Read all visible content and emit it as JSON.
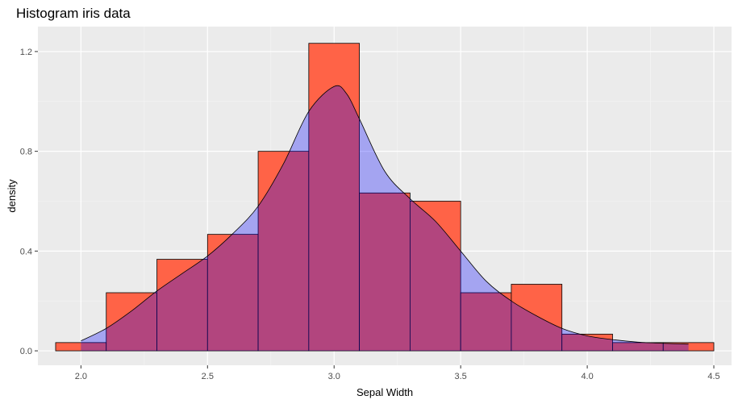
{
  "chart_data": {
    "type": "bar",
    "title": "Histogram iris data",
    "xlabel": "Sepal Width",
    "ylabel": "density",
    "xlim": [
      1.83,
      4.57
    ],
    "ylim": [
      -0.058,
      1.3
    ],
    "x_ticks": [
      2.0,
      2.5,
      3.0,
      3.5,
      4.0,
      4.5
    ],
    "x_tick_labels": [
      "2.0",
      "2.5",
      "3.0",
      "3.5",
      "4.0",
      "4.5"
    ],
    "y_ticks": [
      0.0,
      0.4,
      0.8,
      1.2
    ],
    "y_tick_labels": [
      "0.0",
      "0.4",
      "0.8",
      "1.2"
    ],
    "grid": true,
    "legend": "none",
    "series": [
      {
        "type": "histogram",
        "bins": [
          {
            "x0": 1.9,
            "x1": 2.1,
            "density": 0.033
          },
          {
            "x0": 2.1,
            "x1": 2.3,
            "density": 0.233
          },
          {
            "x0": 2.3,
            "x1": 2.5,
            "density": 0.367
          },
          {
            "x0": 2.5,
            "x1": 2.7,
            "density": 0.467
          },
          {
            "x0": 2.7,
            "x1": 2.9,
            "density": 0.8
          },
          {
            "x0": 2.9,
            "x1": 3.1,
            "density": 1.233
          },
          {
            "x0": 3.1,
            "x1": 3.3,
            "density": 0.633
          },
          {
            "x0": 3.3,
            "x1": 3.5,
            "density": 0.6
          },
          {
            "x0": 3.5,
            "x1": 3.7,
            "density": 0.233
          },
          {
            "x0": 3.7,
            "x1": 3.9,
            "density": 0.267
          },
          {
            "x0": 3.9,
            "x1": 4.1,
            "density": 0.067
          },
          {
            "x0": 4.1,
            "x1": 4.3,
            "density": 0.033
          },
          {
            "x0": 4.3,
            "x1": 4.5,
            "density": 0.033
          }
        ],
        "color": "#FF6347",
        "edge_color": "#000000"
      },
      {
        "type": "density",
        "x": [
          2.0,
          2.1,
          2.2,
          2.3,
          2.4,
          2.5,
          2.6,
          2.7,
          2.8,
          2.9,
          3.0,
          3.05,
          3.1,
          3.2,
          3.3,
          3.4,
          3.5,
          3.6,
          3.7,
          3.8,
          3.9,
          4.0,
          4.1,
          4.2,
          4.3,
          4.4
        ],
        "y": [
          0.04,
          0.09,
          0.16,
          0.24,
          0.31,
          0.38,
          0.47,
          0.58,
          0.75,
          0.96,
          1.06,
          1.03,
          0.93,
          0.72,
          0.61,
          0.52,
          0.4,
          0.28,
          0.2,
          0.14,
          0.09,
          0.06,
          0.045,
          0.035,
          0.03,
          0.027
        ],
        "color": "#0000FF",
        "fill_opacity": 0.3,
        "line_color": "#000000"
      }
    ]
  }
}
